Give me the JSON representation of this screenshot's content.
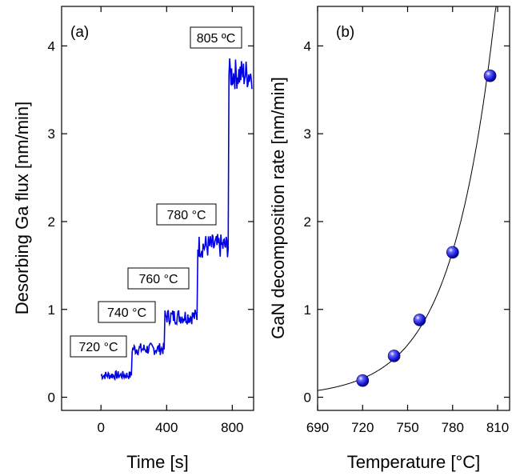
{
  "chart_data": [
    {
      "type": "line",
      "panel_label": "(a)",
      "xlabel": "Time [s]",
      "ylabel": "Desorbing Ga flux [nm/min]",
      "xlim": [
        -240,
        930
      ],
      "ylim": [
        -0.15,
        4.45
      ],
      "xticks": [
        0,
        400,
        800
      ],
      "yticks": [
        0,
        1,
        2,
        3,
        4
      ],
      "series": [
        {
          "color": "#0000e6",
          "segments": [
            {
              "x0": 0,
              "x1": 185,
              "level": 0.25,
              "noise": 0.05
            },
            {
              "x0": 190,
              "x1": 385,
              "level": 0.55,
              "noise": 0.07
            },
            {
              "x0": 390,
              "x1": 585,
              "level": 0.92,
              "noise": 0.09
            },
            {
              "x0": 590,
              "x1": 775,
              "level": 1.72,
              "noise": 0.14
            },
            {
              "x0": 780,
              "x1": 920,
              "level": 3.68,
              "noise": 0.18
            }
          ]
        }
      ],
      "annotations": [
        "720 °C",
        "740 °C",
        "760 °C",
        "780 °C",
        "805 ºC"
      ]
    },
    {
      "type": "scatter",
      "panel_label": "(b)",
      "xlabel": "Temperature [°C]",
      "ylabel": "GaN decomposition rate [nm/min]",
      "xlim": [
        690,
        818
      ],
      "ylim": [
        -0.15,
        4.45
      ],
      "xticks": [
        690,
        720,
        750,
        780,
        810
      ],
      "yticks": [
        0,
        1,
        2,
        3,
        4
      ],
      "points": [
        {
          "x": 720,
          "y": 0.19
        },
        {
          "x": 741,
          "y": 0.47
        },
        {
          "x": 758,
          "y": 0.88
        },
        {
          "x": 780,
          "y": 1.65
        },
        {
          "x": 805,
          "y": 3.66
        }
      ],
      "marker_color": "#1e1ed8",
      "fit_curve": {
        "type": "exponential",
        "color": "#000000"
      }
    }
  ]
}
